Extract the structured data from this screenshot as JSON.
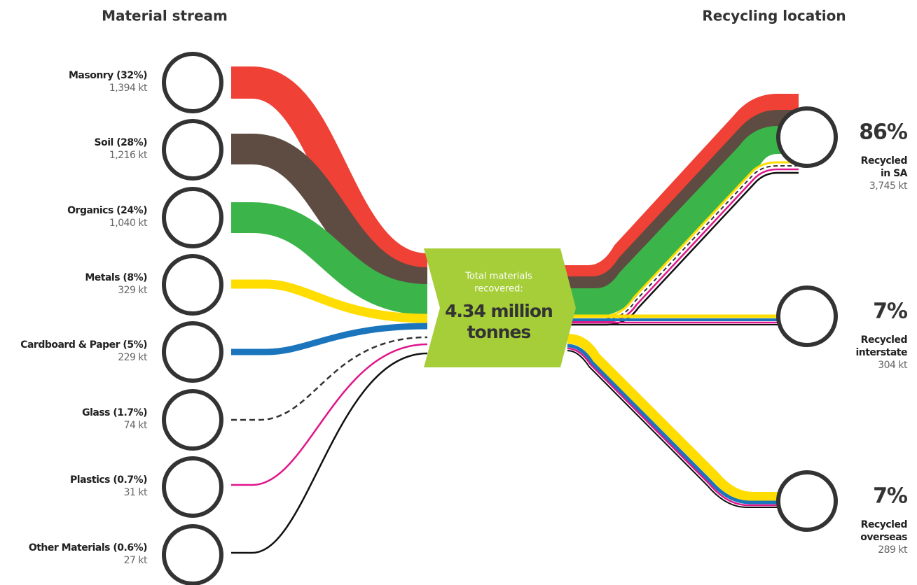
{
  "headers": {
    "left": "Material stream",
    "right": "Recycling location"
  },
  "sources": [
    {
      "label": "Masonry (32%)",
      "amount": "1,394 kt"
    },
    {
      "label": "Soil (28%)",
      "amount": "1,216 kt"
    },
    {
      "label": "Organics (24%)",
      "amount": "1,040 kt"
    },
    {
      "label": "Metals (8%)",
      "amount": "329 kt"
    },
    {
      "label": "Cardboard & Paper (5%)",
      "amount": "229 kt"
    },
    {
      "label": "Glass (1.7%)",
      "amount": "74 kt"
    },
    {
      "label": "Plastics (0.7%)",
      "amount": "31 kt"
    },
    {
      "label": "Other Materials (0.6%)",
      "amount": "27 kt"
    }
  ],
  "center": {
    "line1": "Total materials",
    "line2": "recovered:",
    "line3": "4.34 million",
    "line4": "tonnes"
  },
  "destinations": [
    {
      "percent": "86%",
      "line1": "Recycled",
      "line2": "in SA",
      "amount": "3,745 kt"
    },
    {
      "percent": "7%",
      "line1": "Recycled",
      "line2": "interstate",
      "amount": "304 kt"
    },
    {
      "percent": "7%",
      "line1": "Recycled",
      "line2": "overseas",
      "amount": "289 kt"
    }
  ]
}
